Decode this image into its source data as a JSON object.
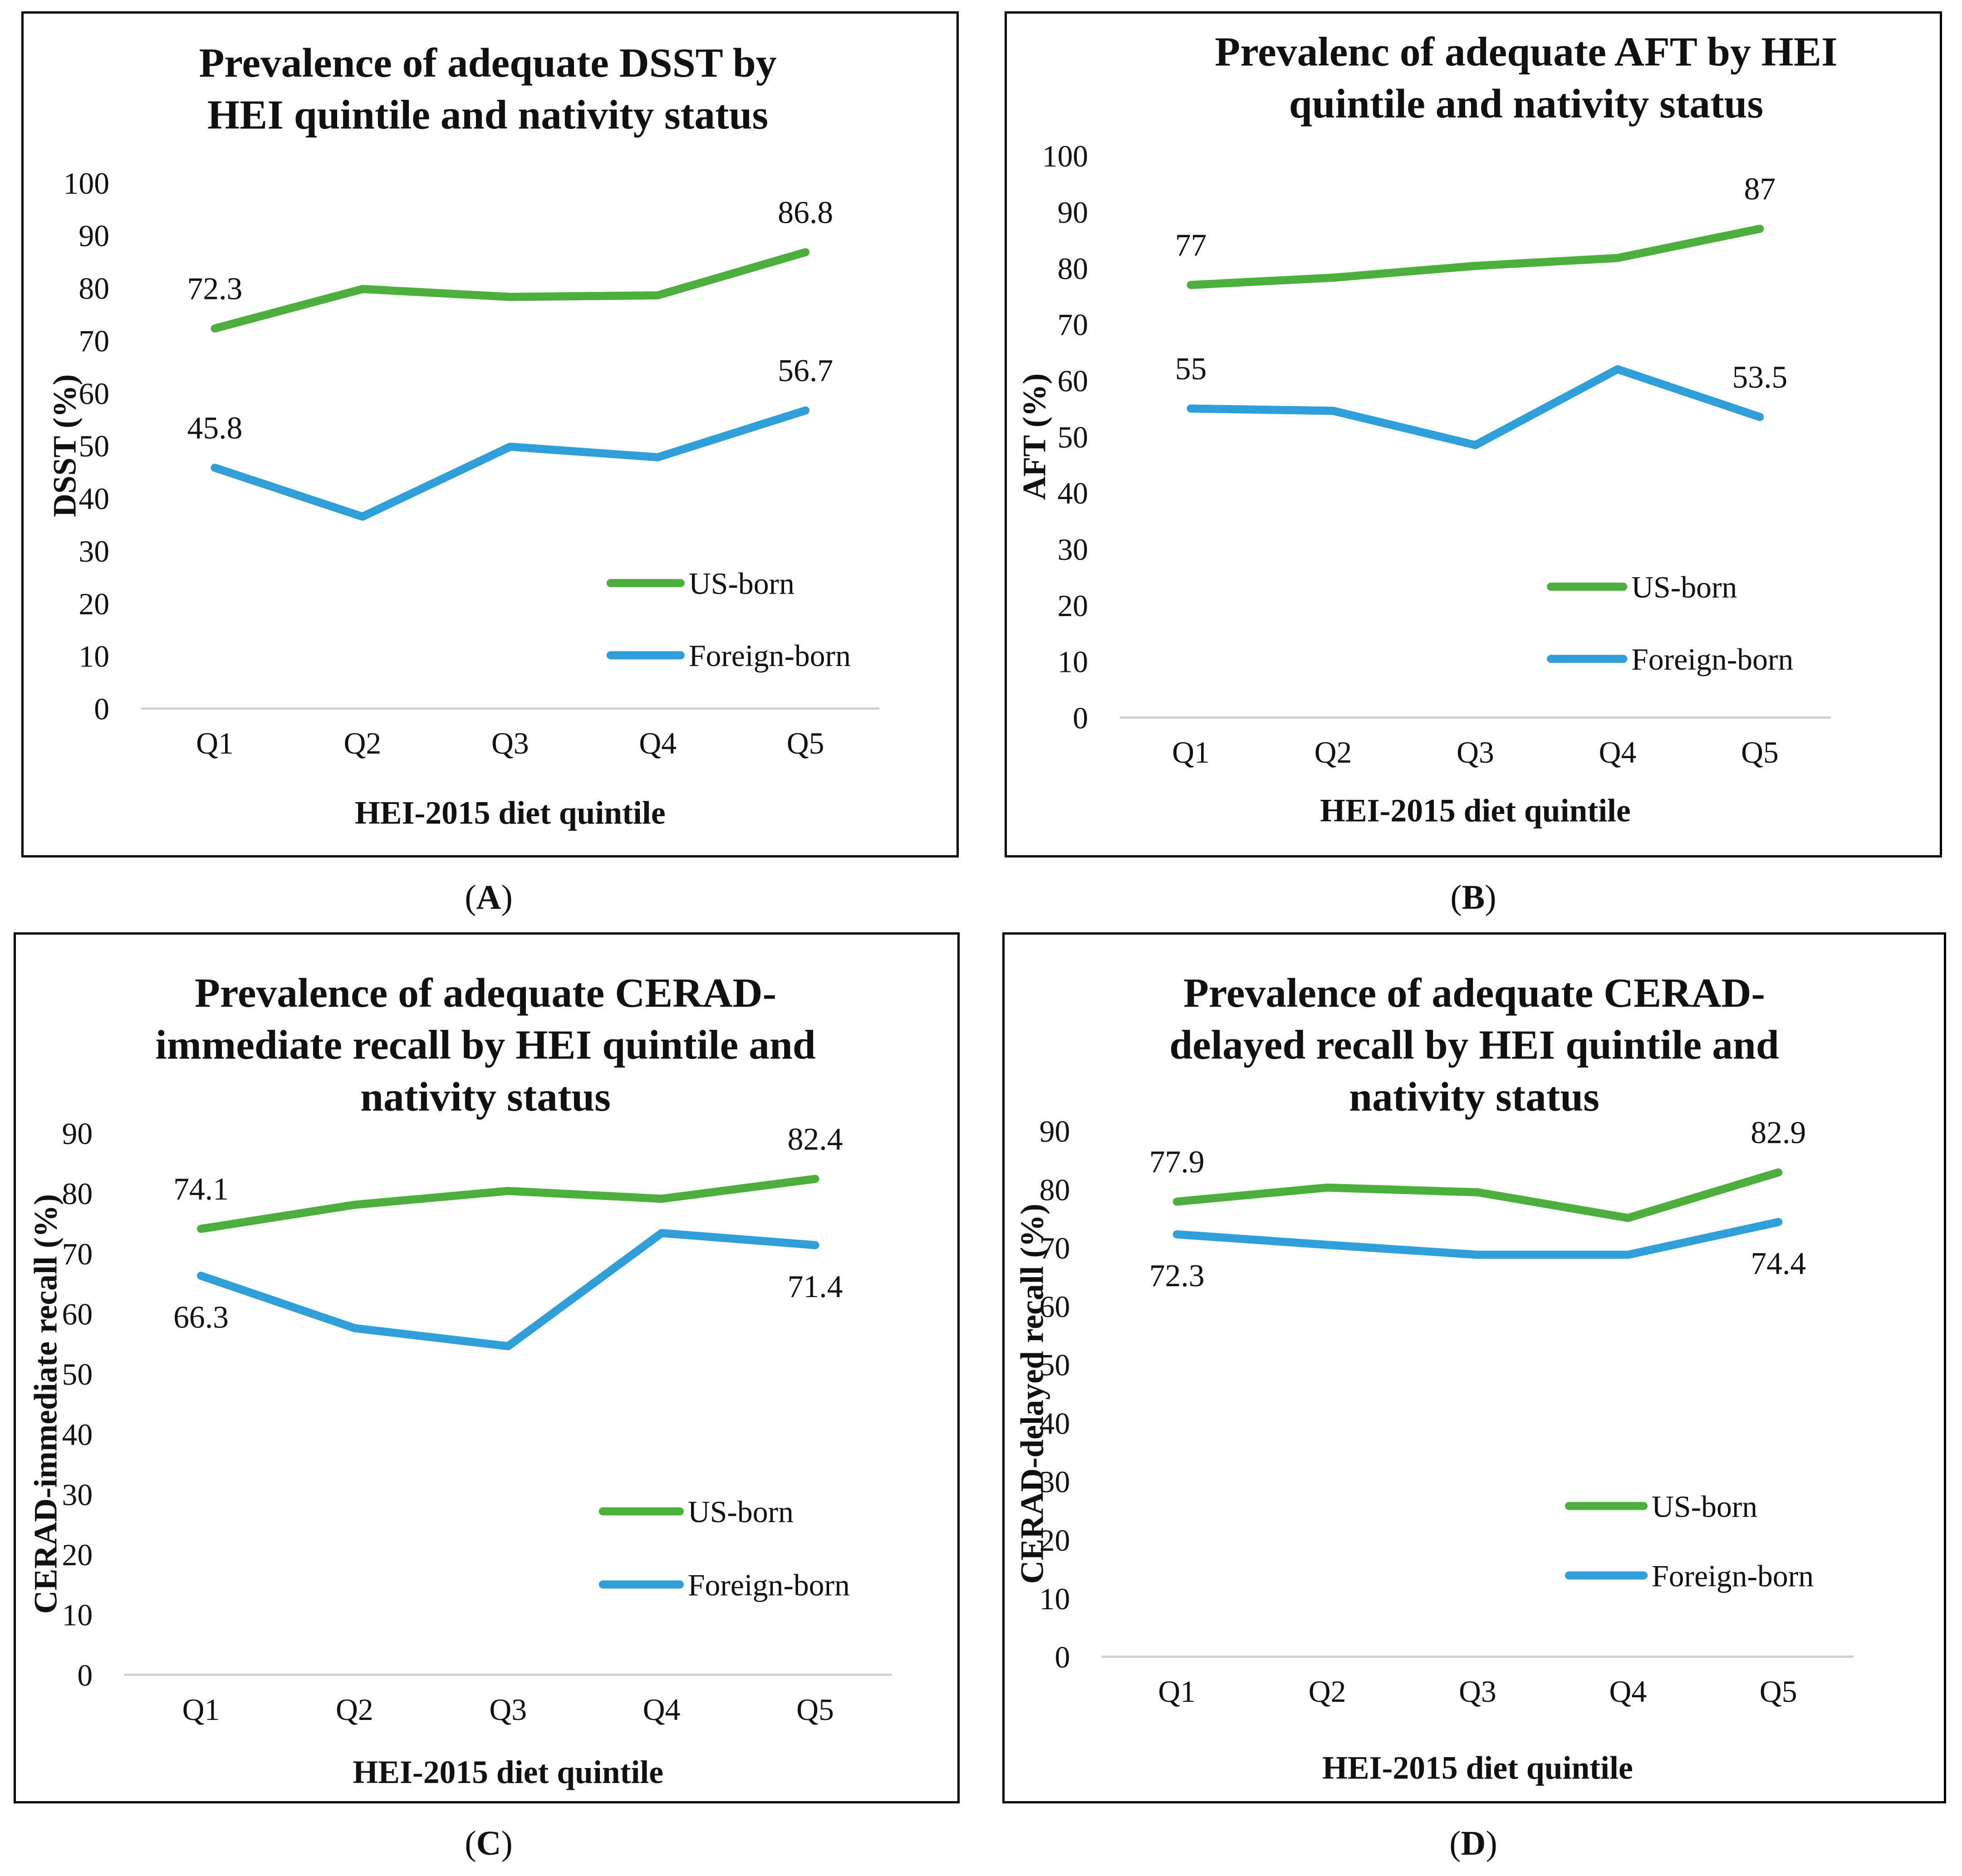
{
  "chart_data": [
    {
      "type": "line",
      "panel": "A",
      "title_lines": [
        "Prevalence of adequate DSST by",
        "HEI quintile and nativity status"
      ],
      "xlabel": "HEI-2015 diet quintile",
      "ylabel": "DSST (%)",
      "categories": [
        "Q1",
        "Q2",
        "Q3",
        "Q4",
        "Q5"
      ],
      "ylim": [
        0,
        100
      ],
      "yticks": [
        0,
        10,
        20,
        30,
        40,
        50,
        60,
        70,
        80,
        90,
        100
      ],
      "legend": "right",
      "series": [
        {
          "name": "US-born",
          "color": "#4caf3c",
          "values": [
            72.3,
            79.8,
            78.3,
            78.6,
            86.8
          ],
          "labels": [
            {
              "index": 0,
              "text": "72.3",
              "pos": "above"
            },
            {
              "index": 4,
              "text": "86.8",
              "pos": "above"
            }
          ]
        },
        {
          "name": "Foreign-born",
          "color": "#2e9fd8",
          "values": [
            45.8,
            36.5,
            49.8,
            47.8,
            56.7
          ],
          "labels": [
            {
              "index": 0,
              "text": "45.8",
              "pos": "above"
            },
            {
              "index": 4,
              "text": "56.7",
              "pos": "above"
            }
          ]
        }
      ]
    },
    {
      "type": "line",
      "panel": "B",
      "title_lines": [
        "Prevalenc of adequate AFT by HEI",
        "quintile and nativity status"
      ],
      "xlabel": "HEI-2015 diet quintile",
      "ylabel": "AFT (%)",
      "categories": [
        "Q1",
        "Q2",
        "Q3",
        "Q4",
        "Q5"
      ],
      "ylim": [
        0,
        100
      ],
      "yticks": [
        0,
        10,
        20,
        30,
        40,
        50,
        60,
        70,
        80,
        90,
        100
      ],
      "legend": "right",
      "series": [
        {
          "name": "US-born",
          "color": "#4caf3c",
          "values": [
            77,
            78.3,
            80.4,
            81.8,
            87
          ],
          "labels": [
            {
              "index": 0,
              "text": "77",
              "pos": "above"
            },
            {
              "index": 4,
              "text": "87",
              "pos": "above"
            }
          ]
        },
        {
          "name": "Foreign-born",
          "color": "#2e9fd8",
          "values": [
            55,
            54.6,
            48.5,
            62,
            53.5
          ],
          "labels": [
            {
              "index": 0,
              "text": "55",
              "pos": "above"
            },
            {
              "index": 4,
              "text": "53.5",
              "pos": "above"
            }
          ]
        }
      ]
    },
    {
      "type": "line",
      "panel": "C",
      "title_lines": [
        "Prevalence of adequate CERAD-",
        "immediate recall by  HEI quintile and",
        "nativity status"
      ],
      "xlabel": "HEI-2015 diet quintile",
      "ylabel": "CERAD-immediate recall (%)",
      "categories": [
        "Q1",
        "Q2",
        "Q3",
        "Q4",
        "Q5"
      ],
      "ylim": [
        0,
        90
      ],
      "yticks": [
        0,
        10,
        20,
        30,
        40,
        50,
        60,
        70,
        80,
        90
      ],
      "legend": "right",
      "series": [
        {
          "name": "US-born",
          "color": "#4caf3c",
          "values": [
            74.1,
            78.1,
            80.4,
            79.1,
            82.4
          ],
          "labels": [
            {
              "index": 0,
              "text": "74.1",
              "pos": "above"
            },
            {
              "index": 4,
              "text": "82.4",
              "pos": "above"
            }
          ]
        },
        {
          "name": "Foreign-born",
          "color": "#2e9fd8",
          "values": [
            66.3,
            57.6,
            54.6,
            73.4,
            71.4
          ],
          "labels": [
            {
              "index": 0,
              "text": "66.3",
              "pos": "below"
            },
            {
              "index": 4,
              "text": "71.4",
              "pos": "below"
            }
          ]
        }
      ]
    },
    {
      "type": "line",
      "panel": "D",
      "title_lines": [
        "Prevalence of adequate CERAD-",
        "delayed recall by HEI quintile and",
        "nativity status"
      ],
      "xlabel": "HEI-2015 diet quintile",
      "ylabel": "CERAD-delayed recall (%)",
      "categories": [
        "Q1",
        "Q2",
        "Q3",
        "Q4",
        "Q5"
      ],
      "ylim": [
        0,
        90
      ],
      "yticks": [
        0,
        10,
        20,
        30,
        40,
        50,
        60,
        70,
        80,
        90
      ],
      "legend": "right",
      "series": [
        {
          "name": "US-born",
          "color": "#4caf3c",
          "values": [
            77.9,
            80.3,
            79.5,
            75.1,
            82.9
          ],
          "labels": [
            {
              "index": 0,
              "text": "77.9",
              "pos": "above"
            },
            {
              "index": 4,
              "text": "82.9",
              "pos": "above"
            }
          ]
        },
        {
          "name": "Foreign-born",
          "color": "#2e9fd8",
          "values": [
            72.3,
            70.5,
            68.8,
            68.8,
            74.4
          ],
          "labels": [
            {
              "index": 0,
              "text": "72.3",
              "pos": "below"
            },
            {
              "index": 4,
              "text": "74.4",
              "pos": "below"
            }
          ]
        }
      ]
    }
  ],
  "captions": [
    "A",
    "B",
    "C",
    "D"
  ]
}
